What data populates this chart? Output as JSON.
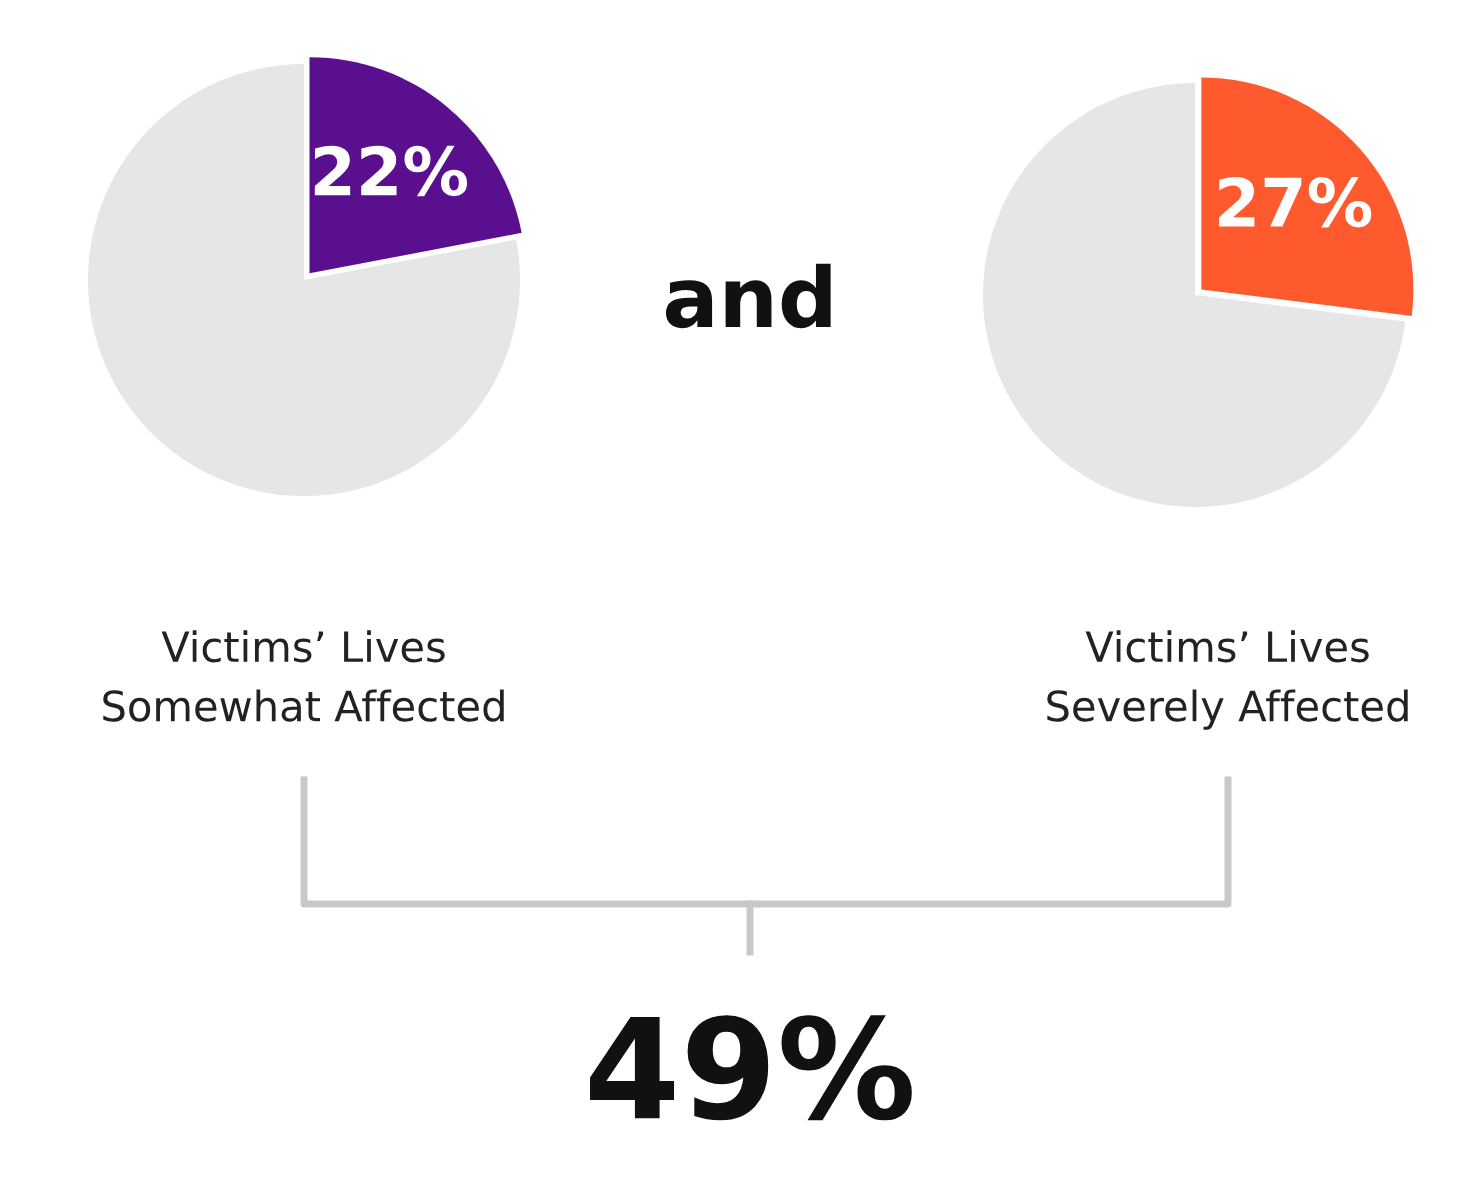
{
  "chart_data": [
    {
      "type": "pie",
      "xlabel": "Victims’ Lives\nSomewhat Affected",
      "categories": [
        null,
        null
      ],
      "values": [
        22,
        78
      ],
      "colors": [
        "#5a0f8f",
        "#e6e6e6"
      ],
      "value_labels": [
        "22%",
        null
      ]
    },
    {
      "type": "pie",
      "xlabel": "Victims’ Lives\nSeverely Affected",
      "categories": [
        null,
        null
      ],
      "values": [
        27,
        73
      ],
      "colors": [
        "#ff5a2e",
        "#e6e6e6"
      ],
      "value_labels": [
        "27%",
        null
      ]
    },
    {
      "type": "other",
      "annotations": [
        "and",
        "49%"
      ]
    }
  ]
}
